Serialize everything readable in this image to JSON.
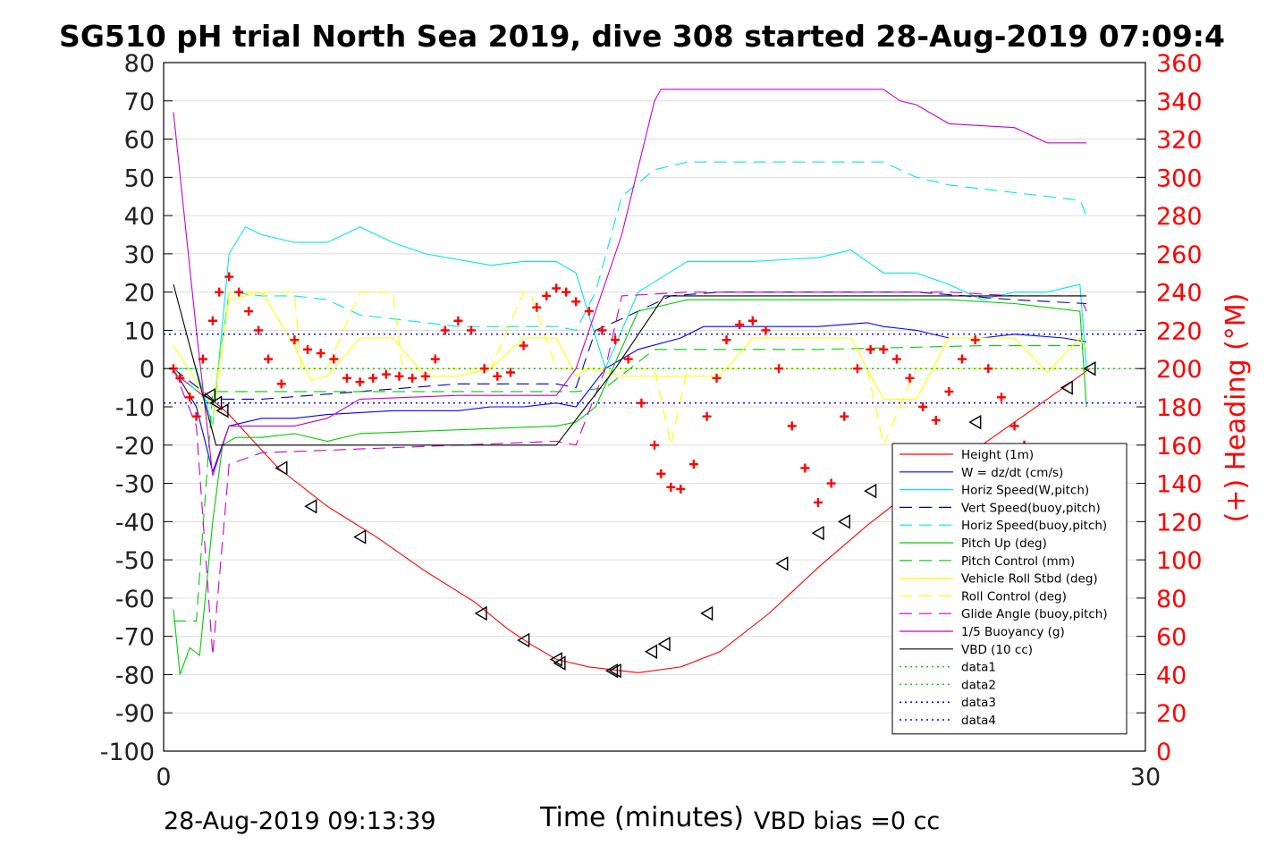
{
  "chart_data": {
    "type": "line",
    "title": "SG510 pH trial North Sea 2019, dive 308 started 28-Aug-2019 07:09:4",
    "xlabel": "Time (minutes)",
    "ylabel": "",
    "y2label": "(+) Heading (°M)",
    "xlim": [
      0,
      30
    ],
    "ylim": [
      -100,
      80
    ],
    "y2lim": [
      0,
      360
    ],
    "xticks": [
      "0",
      "30"
    ],
    "yticks": [
      "80",
      "70",
      "60",
      "50",
      "40",
      "30",
      "20",
      "10",
      "0",
      "-10",
      "-20",
      "-30",
      "-40",
      "-50",
      "-60",
      "-70",
      "-80",
      "-90",
      "-100"
    ],
    "y2ticks": [
      "360",
      "340",
      "320",
      "300",
      "280",
      "260",
      "240",
      "220",
      "200",
      "180",
      "160",
      "140",
      "120",
      "100",
      "80",
      "60",
      "40",
      "20",
      "0"
    ],
    "grid": true,
    "legend_position": "lower-right",
    "footer_left": "28-Aug-2019 09:13:39",
    "footer_right": "VBD bias =0 cc",
    "colors": {
      "heading": "#ff0000",
      "right_axis": "#ff0000"
    },
    "series": [
      {
        "name": "Height (1m)",
        "color": "#ff0000",
        "style": "solid",
        "x": [
          0.3,
          1.2,
          1.6,
          2.0,
          3.5,
          5.0,
          6.5,
          8.0,
          9.5,
          10.5,
          11.2,
          12.0,
          13.0,
          14.5,
          15.8,
          17.0,
          18.5,
          20.0,
          21.5,
          23.0,
          24.5,
          26.0,
          27.5,
          28.3
        ],
        "y": [
          -1,
          -7,
          -9,
          -12,
          -26,
          -36,
          -44,
          -53,
          -61,
          -68,
          -72,
          -76,
          -78,
          -79.5,
          -78,
          -74,
          -64,
          -52,
          -41,
          -31,
          -23,
          -14,
          -5,
          0
        ]
      },
      {
        "name": "W = dz/dt (cm/s)",
        "color": "#0000ff",
        "style": "solid",
        "x": [
          0.3,
          1.0,
          1.5,
          2.0,
          3.0,
          4.0,
          5.0,
          7.0,
          9.0,
          10.0,
          11.0,
          12.0,
          12.6,
          13.5,
          14.5,
          15.8,
          16.5,
          17.5,
          18.5,
          20.0,
          21.5,
          22.0,
          23.0,
          24.0,
          25.0,
          26.0,
          27.5,
          28.2
        ],
        "y": [
          0,
          -10,
          -27,
          -15,
          -13,
          -13,
          -12,
          -11,
          -11,
          -10,
          -10,
          -9,
          -10,
          0,
          5,
          8,
          11,
          11,
          11,
          11,
          12,
          11,
          10,
          8,
          8,
          9,
          8,
          7
        ]
      },
      {
        "name": "Horiz Speed(W,pitch)",
        "color": "#00e6e6",
        "style": "solid",
        "x": [
          0.3,
          1.0,
          1.5,
          2.0,
          2.5,
          3.0,
          4.0,
          5.0,
          6.0,
          7.0,
          8.0,
          10.0,
          11.0,
          12.0,
          12.6,
          13.5,
          14.5,
          16.0,
          17.0,
          18.0,
          20.0,
          21.0,
          22.0,
          23.0,
          24.0,
          25.0,
          26.0,
          27.0,
          28.0,
          28.2
        ],
        "y": [
          0,
          0,
          -15,
          30,
          37,
          35,
          33,
          33,
          37,
          33,
          30,
          27,
          28,
          28,
          25,
          0,
          20,
          28,
          28,
          28,
          29,
          31,
          25,
          25,
          22,
          18,
          20,
          20,
          22,
          0
        ]
      },
      {
        "name": "Vert Speed(buoy,pitch)",
        "color": "#0000aa",
        "style": "dashed",
        "x": [
          0.3,
          1.5,
          3.0,
          6.0,
          9.0,
          12.0,
          12.6,
          13.2,
          14.0,
          15.5,
          17.0,
          20.0,
          23.0,
          26.0,
          28.2
        ],
        "y": [
          0,
          -8,
          -8,
          -6,
          -4,
          -4,
          -5,
          10,
          13,
          19,
          20,
          20,
          20,
          18,
          17
        ]
      },
      {
        "name": "Horiz Speed(buoy,pitch)",
        "color": "#00e6e6",
        "style": "dashed",
        "x": [
          0.3,
          1.5,
          2.0,
          3.0,
          4.0,
          5.0,
          6.0,
          9.0,
          12.0,
          12.6,
          13.2,
          14.0,
          15.0,
          16.0,
          17.0,
          19.0,
          21.0,
          22.0,
          23.0,
          24.0,
          25.0,
          26.0,
          27.0,
          28.0,
          28.2
        ],
        "y": [
          0,
          -10,
          20,
          19,
          19,
          18,
          14,
          11,
          11,
          10,
          20,
          45,
          52,
          54,
          54,
          54,
          54,
          54,
          50,
          48,
          47,
          46,
          45,
          44,
          40
        ]
      },
      {
        "name": "Pitch Up (deg)",
        "color": "#00cc00",
        "style": "solid",
        "x": [
          0.3,
          0.5,
          0.8,
          1.1,
          1.5,
          1.8,
          2.2,
          3.0,
          4.0,
          5.0,
          6.0,
          9.0,
          12.0,
          12.6,
          13.2,
          14.5,
          16.0,
          18.0,
          20.0,
          22.0,
          24.0,
          26.0,
          28.0,
          28.2
        ],
        "y": [
          -63,
          -80,
          -73,
          -75,
          -40,
          -20,
          -18,
          -18,
          -17,
          -19,
          -17,
          -16,
          -15,
          -14,
          -10,
          15,
          18,
          18,
          18,
          18,
          18,
          17,
          15,
          -10
        ]
      },
      {
        "name": "Pitch Control (mm)",
        "color": "#00cc00",
        "style": "dashed",
        "x": [
          0.3,
          1.0,
          1.5,
          3.0,
          6.0,
          9.0,
          12.0,
          12.6,
          13.5,
          15.0,
          20.0,
          25.0,
          28.2
        ],
        "y": [
          -66,
          -66,
          -6,
          -6,
          -6,
          -6,
          -6,
          -6,
          -5,
          5,
          5,
          6,
          6
        ]
      },
      {
        "name": "Vehicle Roll Stbd (deg)",
        "color": "#ffff00",
        "style": "solid",
        "x": [
          0.3,
          1.5,
          2.0,
          3.0,
          4.0,
          4.5,
          5.0,
          6.0,
          7.0,
          8.0,
          9.0,
          10.0,
          11.0,
          12.0,
          12.6,
          13.0,
          14.0,
          15.0,
          16.0,
          17.0,
          18.0,
          19.0,
          20.0,
          21.0,
          22.0,
          23.0,
          24.0,
          25.0,
          26.0,
          27.0,
          28.0,
          28.2
        ],
        "y": [
          6,
          -10,
          18,
          20,
          6,
          -3,
          -2,
          8,
          8,
          -2,
          -2,
          0,
          8,
          8,
          -2,
          0,
          -2,
          -2,
          -2,
          -2,
          8,
          8,
          8,
          8,
          -8,
          -8,
          8,
          8,
          8,
          -1,
          8,
          5
        ]
      },
      {
        "name": "Roll Control (deg)",
        "color": "#ffff00",
        "style": "dashed",
        "x": [
          0.3,
          1.5,
          2.0,
          3.0,
          4.0,
          4.2,
          5.0,
          6.0,
          7.0,
          7.3,
          8.0,
          9.0,
          10.0,
          11.0,
          11.2,
          12.0,
          13.0,
          14.0,
          15.0,
          15.5,
          16.0,
          18.0,
          20.0,
          21.5,
          22.0,
          23.0,
          24.0,
          26.0,
          27.0,
          28.2
        ],
        "y": [
          0,
          -15,
          20,
          20,
          20,
          0,
          0,
          20,
          20,
          0,
          0,
          0,
          0,
          20,
          20,
          0,
          0,
          0,
          0,
          -20,
          0,
          0,
          0,
          0,
          -20,
          0,
          0,
          0,
          0,
          0
        ]
      },
      {
        "name": "Glide Angle (buoy,pitch)",
        "color": "#cc00cc",
        "style": "dashed",
        "x": [
          0.3,
          1.0,
          1.5,
          2.0,
          3.0,
          6.0,
          9.0,
          12.0,
          12.6,
          13.5,
          14.0,
          16.0,
          20.0,
          24.0,
          26.0,
          28.0,
          28.2
        ],
        "y": [
          0,
          -15,
          -75,
          -25,
          -22,
          -21,
          -20,
          -19,
          -20,
          0,
          19,
          20,
          20,
          20,
          19,
          19,
          15
        ]
      },
      {
        "name": "1/5 Buoyancy (g)",
        "color": "#cc00cc",
        "style": "solid",
        "x": [
          0.3,
          1.0,
          1.5,
          2.0,
          3.0,
          4.0,
          5.0,
          6.0,
          9.0,
          12.0,
          12.6,
          13.0,
          14.0,
          15.0,
          15.2,
          18.0,
          20.0,
          21.0,
          22.0,
          22.5,
          23.0,
          24.0,
          26.0,
          27.0,
          28.2
        ],
        "y": [
          67,
          10,
          -28,
          -15,
          -15,
          -15,
          -13,
          -8,
          -7,
          -7,
          0,
          10,
          35,
          70,
          73,
          73,
          73,
          73,
          73,
          70,
          69,
          64,
          63,
          59,
          59
        ]
      },
      {
        "name": "VBD (10 cc)",
        "color": "#000000",
        "style": "solid",
        "x": [
          0.3,
          1.6,
          12.0,
          13.8,
          15.3,
          28.2
        ],
        "y": [
          22,
          -20,
          -20,
          0,
          19,
          19
        ]
      },
      {
        "name": "data1",
        "color": "#00cc00",
        "style": "dotted",
        "x": [
          0,
          30
        ],
        "y": [
          0,
          0
        ]
      },
      {
        "name": "data2",
        "color": "#00cc00",
        "style": "dotted",
        "x": [
          0,
          30
        ],
        "y": [
          0,
          0
        ]
      },
      {
        "name": "data3",
        "color": "#0000ff",
        "style": "dotted",
        "x": [
          0,
          30
        ],
        "y": [
          9,
          9
        ]
      },
      {
        "name": "data4",
        "color": "#0000ff",
        "style": "dotted",
        "x": [
          0,
          30
        ],
        "y": [
          -9,
          -9
        ]
      }
    ],
    "heading": {
      "axis": "right",
      "marker": "+",
      "x": [
        0.3,
        0.5,
        0.8,
        1.0,
        1.2,
        1.5,
        1.7,
        2.0,
        2.3,
        2.6,
        2.9,
        3.2,
        3.6,
        4.0,
        4.4,
        4.8,
        5.2,
        5.6,
        6.0,
        6.4,
        6.8,
        7.2,
        7.6,
        8.0,
        8.3,
        8.6,
        9.0,
        9.4,
        9.8,
        10.2,
        10.6,
        11.0,
        11.4,
        11.7,
        12.0,
        12.3,
        12.6,
        13.0,
        13.4,
        13.8,
        14.2,
        14.6,
        15.0,
        15.2,
        15.5,
        15.8,
        16.2,
        16.6,
        16.9,
        17.2,
        17.6,
        18.0,
        18.4,
        18.8,
        19.2,
        19.6,
        20.0,
        20.4,
        20.8,
        21.2,
        21.6,
        22.0,
        22.4,
        22.8,
        23.2,
        23.6,
        24.0,
        24.4,
        24.8,
        25.2,
        25.6,
        26.0,
        26.3,
        26.6,
        26.9,
        27.2
      ],
      "y": [
        200,
        195,
        185,
        175,
        205,
        225,
        240,
        248,
        240,
        230,
        220,
        205,
        192,
        215,
        210,
        208,
        205,
        195,
        193,
        195,
        197,
        196,
        195,
        196,
        205,
        220,
        225,
        220,
        200,
        196,
        198,
        212,
        232,
        238,
        242,
        240,
        235,
        230,
        220,
        215,
        205,
        182,
        160,
        145,
        138,
        137,
        150,
        175,
        195,
        215,
        223,
        225,
        220,
        200,
        170,
        148,
        130,
        140,
        175,
        200,
        210,
        210,
        205,
        195,
        180,
        173,
        188,
        205,
        215,
        200,
        185,
        170,
        160,
        150,
        140,
        150
      ]
    },
    "markers": {
      "symbol": "triangle-left",
      "x": [
        1.4,
        1.6,
        1.8,
        3.6,
        4.5,
        6.0,
        9.7,
        11.0,
        12.0,
        12.1,
        13.7,
        13.8,
        14.9,
        15.3,
        16.6,
        18.9,
        20.0,
        20.8,
        21.6,
        24.8,
        27.6,
        28.3
      ],
      "y": [
        -7,
        -9,
        -11,
        -26,
        -36,
        -44,
        -64,
        -71,
        -76,
        -77,
        -79,
        -79,
        -74,
        -72,
        -64,
        -51,
        -43,
        -40,
        -32,
        -14,
        -5,
        0
      ]
    }
  }
}
